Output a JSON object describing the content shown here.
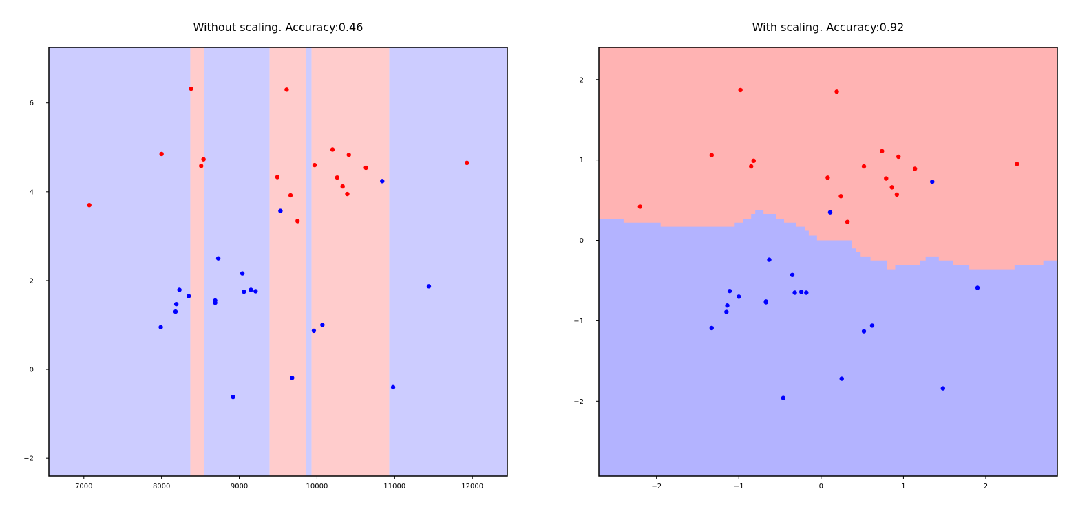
{
  "colors": {
    "class0_point": "#0000ff",
    "class1_point": "#ff0000",
    "region0_left": "#ccccff",
    "region1_left": "#ffcccc",
    "region0_right": "#b3b3ff",
    "region1_right": "#ffb3b3"
  },
  "chart_data": [
    {
      "type": "scatter",
      "title": "Without scaling. Accuracy:0.46",
      "xlabel": "",
      "ylabel": "",
      "xlim": [
        6550,
        12450
      ],
      "ylim": [
        -2.4,
        7.25
      ],
      "xticks": [
        7000,
        8000,
        9000,
        10000,
        11000,
        12000
      ],
      "xtick_labels": [
        "7000",
        "8000",
        "9000",
        "10000",
        "11000",
        "12000"
      ],
      "yticks": [
        -2,
        0,
        2,
        4,
        6
      ],
      "ytick_labels": [
        "−2",
        "0",
        "2",
        "4",
        "6"
      ],
      "grid": false,
      "legend": "none",
      "decision_regions": [
        {
          "x0": 6550,
          "x1": 8370,
          "class": 0
        },
        {
          "x0": 8370,
          "x1": 8550,
          "class": 1
        },
        {
          "x0": 8550,
          "x1": 9390,
          "class": 0
        },
        {
          "x0": 9390,
          "x1": 9860,
          "class": 1
        },
        {
          "x0": 9860,
          "x1": 9930,
          "class": 0
        },
        {
          "x0": 9930,
          "x1": 10930,
          "class": 1
        },
        {
          "x0": 10930,
          "x1": 12450,
          "class": 0
        }
      ],
      "series": [
        {
          "class": 1,
          "points": [
            [
              7070,
              3.7
            ],
            [
              8000,
              4.85
            ],
            [
              8380,
              6.32
            ],
            [
              8510,
              4.58
            ],
            [
              8540,
              4.73
            ],
            [
              9490,
              4.33
            ],
            [
              9610,
              6.3
            ],
            [
              9660,
              3.92
            ],
            [
              9750,
              3.34
            ],
            [
              9970,
              4.6
            ],
            [
              10200,
              4.95
            ],
            [
              10260,
              4.32
            ],
            [
              10330,
              4.12
            ],
            [
              10390,
              3.95
            ],
            [
              10410,
              4.83
            ],
            [
              10630,
              4.54
            ],
            [
              11930,
              4.65
            ]
          ]
        },
        {
          "class": 0,
          "points": [
            [
              7990,
              0.95
            ],
            [
              8180,
              1.3
            ],
            [
              8190,
              1.47
            ],
            [
              8230,
              1.79
            ],
            [
              8350,
              1.65
            ],
            [
              8690,
              1.5
            ],
            [
              8690,
              1.55
            ],
            [
              8730,
              2.5
            ],
            [
              8920,
              -0.62
            ],
            [
              9040,
              2.16
            ],
            [
              9060,
              1.75
            ],
            [
              9150,
              1.79
            ],
            [
              9210,
              1.76
            ],
            [
              9530,
              3.57
            ],
            [
              9680,
              -0.19
            ],
            [
              9960,
              0.87
            ],
            [
              10070,
              1.0
            ],
            [
              10840,
              4.24
            ],
            [
              10980,
              -0.4
            ],
            [
              11440,
              1.87
            ]
          ]
        }
      ]
    },
    {
      "type": "scatter",
      "title": "With scaling. Accuracy:0.92",
      "xlabel": "",
      "ylabel": "",
      "xlim": [
        -2.7,
        2.87
      ],
      "ylim": [
        -2.93,
        2.4
      ],
      "xticks": [
        -2,
        -1,
        0,
        1,
        2
      ],
      "xtick_labels": [
        "−2",
        "−1",
        "0",
        "1",
        "2"
      ],
      "yticks": [
        -2,
        -1,
        0,
        1,
        2
      ],
      "ytick_labels": [
        "−2",
        "−1",
        "0",
        "1",
        "2"
      ],
      "grid": false,
      "legend": "none",
      "decision_boundary": [
        [
          -2.7,
          0.27
        ],
        [
          -2.4,
          0.27
        ],
        [
          -2.4,
          0.22
        ],
        [
          -1.95,
          0.22
        ],
        [
          -1.95,
          0.17
        ],
        [
          -1.05,
          0.17
        ],
        [
          -1.05,
          0.22
        ],
        [
          -0.95,
          0.22
        ],
        [
          -0.95,
          0.27
        ],
        [
          -0.85,
          0.27
        ],
        [
          -0.85,
          0.33
        ],
        [
          -0.8,
          0.33
        ],
        [
          -0.8,
          0.38
        ],
        [
          -0.7,
          0.38
        ],
        [
          -0.7,
          0.33
        ],
        [
          -0.55,
          0.33
        ],
        [
          -0.55,
          0.27
        ],
        [
          -0.45,
          0.27
        ],
        [
          -0.45,
          0.22
        ],
        [
          -0.3,
          0.22
        ],
        [
          -0.3,
          0.17
        ],
        [
          -0.2,
          0.17
        ],
        [
          -0.2,
          0.12
        ],
        [
          -0.15,
          0.12
        ],
        [
          -0.15,
          0.06
        ],
        [
          -0.05,
          0.06
        ],
        [
          -0.05,
          0.0
        ],
        [
          0.2,
          0.0
        ],
        [
          0.2,
          0.0
        ],
        [
          0.37,
          0.0
        ],
        [
          0.37,
          -0.1
        ],
        [
          0.42,
          -0.1
        ],
        [
          0.42,
          -0.15
        ],
        [
          0.48,
          -0.15
        ],
        [
          0.48,
          -0.2
        ],
        [
          0.6,
          -0.2
        ],
        [
          0.6,
          -0.25
        ],
        [
          0.8,
          -0.25
        ],
        [
          0.8,
          -0.36
        ],
        [
          0.9,
          -0.36
        ],
        [
          0.9,
          -0.31
        ],
        [
          1.2,
          -0.31
        ],
        [
          1.2,
          -0.25
        ],
        [
          1.27,
          -0.25
        ],
        [
          1.27,
          -0.2
        ],
        [
          1.43,
          -0.2
        ],
        [
          1.43,
          -0.25
        ],
        [
          1.6,
          -0.25
        ],
        [
          1.6,
          -0.31
        ],
        [
          1.8,
          -0.31
        ],
        [
          1.8,
          -0.36
        ],
        [
          2.35,
          -0.36
        ],
        [
          2.35,
          -0.31
        ],
        [
          2.7,
          -0.31
        ],
        [
          2.7,
          -0.25
        ],
        [
          2.87,
          -0.25
        ]
      ],
      "series": [
        {
          "class": 1,
          "points": [
            [
              -2.2,
              0.42
            ],
            [
              -1.33,
              1.06
            ],
            [
              -0.98,
              1.87
            ],
            [
              -0.85,
              0.92
            ],
            [
              -0.82,
              0.99
            ],
            [
              0.08,
              0.78
            ],
            [
              0.19,
              1.85
            ],
            [
              0.24,
              0.55
            ],
            [
              0.32,
              0.23
            ],
            [
              0.52,
              0.92
            ],
            [
              0.74,
              1.11
            ],
            [
              0.79,
              0.77
            ],
            [
              0.86,
              0.66
            ],
            [
              0.92,
              0.57
            ],
            [
              0.94,
              1.04
            ],
            [
              1.14,
              0.89
            ],
            [
              2.38,
              0.95
            ]
          ]
        },
        {
          "class": 0,
          "points": [
            [
              -1.33,
              -1.09
            ],
            [
              -1.15,
              -0.89
            ],
            [
              -1.14,
              -0.81
            ],
            [
              -1.11,
              -0.63
            ],
            [
              -1.0,
              -0.7
            ],
            [
              -0.67,
              -0.77
            ],
            [
              -0.67,
              -0.76
            ],
            [
              -0.63,
              -0.24
            ],
            [
              -0.46,
              -1.96
            ],
            [
              -0.35,
              -0.43
            ],
            [
              -0.32,
              -0.65
            ],
            [
              -0.24,
              -0.64
            ],
            [
              -0.18,
              -0.65
            ],
            [
              0.11,
              0.35
            ],
            [
              0.25,
              -1.72
            ],
            [
              0.52,
              -1.13
            ],
            [
              0.62,
              -1.06
            ],
            [
              1.35,
              0.73
            ],
            [
              1.48,
              -1.84
            ],
            [
              1.9,
              -0.59
            ]
          ]
        }
      ]
    }
  ]
}
